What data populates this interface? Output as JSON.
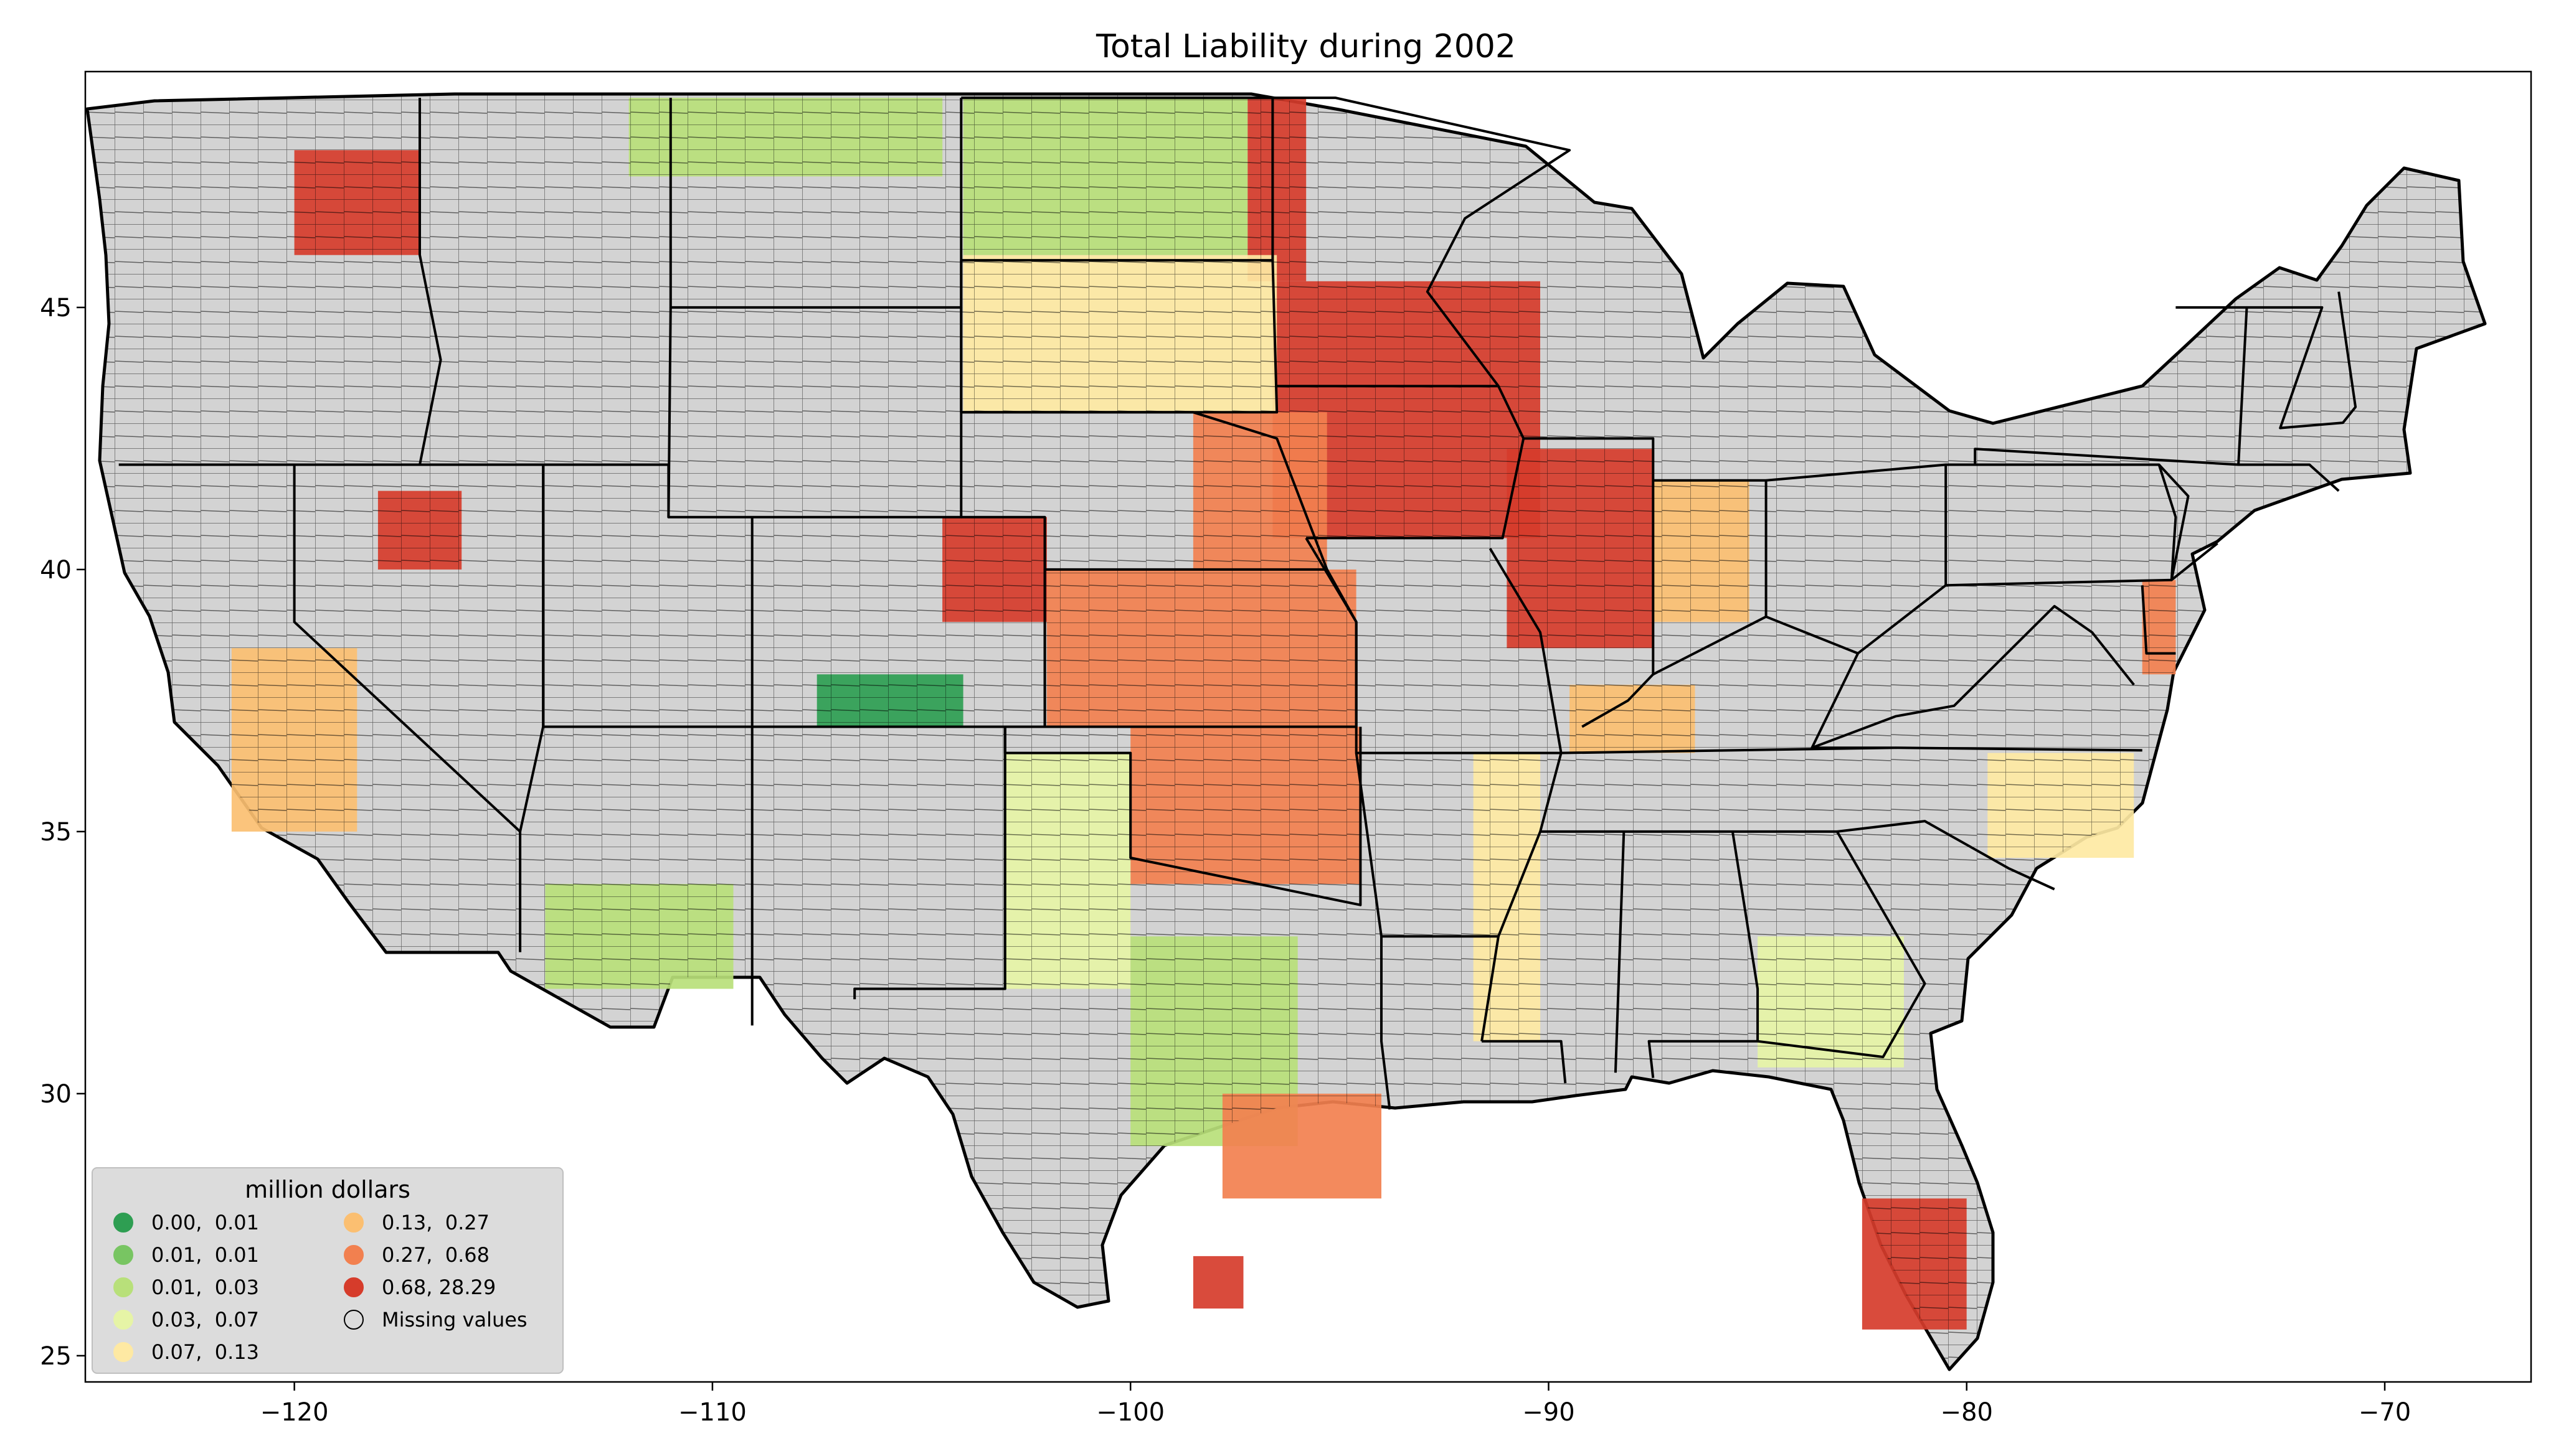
{
  "title": "Total Liability during 2002",
  "map": {
    "projection": "plate carree (longitude / latitude)",
    "lon_range": [
      -125,
      -66.5
    ],
    "lat_range": [
      24.5,
      49.5
    ],
    "background_color": "#d3d3d3",
    "county_border_color": "#000000",
    "region": "contiguous United States, county level"
  },
  "axes": {
    "x_ticks": [
      {
        "value": -120,
        "label": "−120"
      },
      {
        "value": -110,
        "label": "−110"
      },
      {
        "value": -100,
        "label": "−100"
      },
      {
        "value": -90,
        "label": "−90"
      },
      {
        "value": -80,
        "label": "−80"
      },
      {
        "value": -70,
        "label": "−70"
      }
    ],
    "y_ticks": [
      {
        "value": 25,
        "label": "25"
      },
      {
        "value": 30,
        "label": "30"
      },
      {
        "value": 35,
        "label": "35"
      },
      {
        "value": 40,
        "label": "40"
      },
      {
        "value": 45,
        "label": "45"
      }
    ]
  },
  "legend": {
    "title": "million dollars",
    "placement": "lower-left",
    "entries": [
      {
        "label": "0.00,  0.01",
        "color": "#2e9e52"
      },
      {
        "label": "0.01,  0.01",
        "color": "#78c562"
      },
      {
        "label": "0.01,  0.03",
        "color": "#b8e07a"
      },
      {
        "label": "0.03,  0.07",
        "color": "#e6f4a6"
      },
      {
        "label": "0.07,  0.13",
        "color": "#fee9a3"
      },
      {
        "label": "0.13,  0.27",
        "color": "#fbbf71"
      },
      {
        "label": "0.27,  0.68",
        "color": "#f2804f"
      },
      {
        "label": "0.68, 28.29",
        "color": "#d63c2b"
      },
      {
        "label": "Missing values",
        "color": "none"
      }
    ]
  },
  "chart_data": {
    "type": "choropleth",
    "title": "Total Liability during 2002",
    "value_unit": "million dollars",
    "xlim": [
      -125,
      -66.5
    ],
    "ylim": [
      24.5,
      49.5
    ],
    "classes": [
      {
        "range": [
          0.0,
          0.01
        ],
        "color": "#2e9e52"
      },
      {
        "range": [
          0.01,
          0.01
        ],
        "color": "#78c562"
      },
      {
        "range": [
          0.01,
          0.03
        ],
        "color": "#b8e07a"
      },
      {
        "range": [
          0.03,
          0.07
        ],
        "color": "#e6f4a6"
      },
      {
        "range": [
          0.07,
          0.13
        ],
        "color": "#fee9a3"
      },
      {
        "range": [
          0.13,
          0.27
        ],
        "color": "#fbbf71"
      },
      {
        "range": [
          0.27,
          0.68
        ],
        "color": "#f2804f"
      },
      {
        "range": [
          0.68,
          28.29
        ],
        "color": "#d63c2b"
      }
    ],
    "missing_color": "#d3d3d3",
    "regions": [
      {
        "name": "Iowa and southern Minnesota",
        "lon": [
          -96.6,
          -90.2
        ],
        "lat": [
          40.6,
          45.5
        ],
        "class": 7
      },
      {
        "name": "Red River Valley (MN/ND border)",
        "lon": [
          -97.2,
          -95.8
        ],
        "lat": [
          45.5,
          49.0
        ],
        "class": 7
      },
      {
        "name": "Eastern Nebraska",
        "lon": [
          -98.5,
          -95.3
        ],
        "lat": [
          40.0,
          43.0
        ],
        "class": 6
      },
      {
        "name": "Kansas",
        "lon": [
          -102.0,
          -94.6
        ],
        "lat": [
          37.0,
          40.0
        ],
        "class": 6
      },
      {
        "name": "Northeastern Colorado",
        "lon": [
          -104.5,
          -102.0
        ],
        "lat": [
          39.0,
          41.0
        ],
        "class": 7
      },
      {
        "name": "Central Illinois",
        "lon": [
          -91.0,
          -87.5
        ],
        "lat": [
          38.5,
          42.3
        ],
        "class": 7
      },
      {
        "name": "Indiana corn belt",
        "lon": [
          -87.5,
          -85.2
        ],
        "lat": [
          39.0,
          41.7
        ],
        "class": 5
      },
      {
        "name": "Oklahoma",
        "lon": [
          -100.0,
          -94.5
        ],
        "lat": [
          34.0,
          37.0
        ],
        "class": 6
      },
      {
        "name": "South Dakota",
        "lon": [
          -104.0,
          -96.5
        ],
        "lat": [
          43.0,
          46.0
        ],
        "class": 4
      },
      {
        "name": "North Dakota",
        "lon": [
          -104.0,
          -97.2
        ],
        "lat": [
          46.0,
          49.0
        ],
        "class": 2
      },
      {
        "name": "Texas Panhandle",
        "lon": [
          -103.0,
          -100.0
        ],
        "lat": [
          32.0,
          36.5
        ],
        "class": 3
      },
      {
        "name": "Central Texas",
        "lon": [
          -100.0,
          -96.0
        ],
        "lat": [
          29.0,
          33.0
        ],
        "class": 2
      },
      {
        "name": "Texas Gulf Coast",
        "lon": [
          -97.8,
          -94.0
        ],
        "lat": [
          28.0,
          30.0
        ],
        "class": 6
      },
      {
        "name": "Lower Rio Grande Valley",
        "lon": [
          -98.5,
          -97.3
        ],
        "lat": [
          25.9,
          26.9
        ],
        "class": 7
      },
      {
        "name": "Mississippi Delta",
        "lon": [
          -91.8,
          -90.2
        ],
        "lat": [
          31.0,
          36.5
        ],
        "class": 4
      },
      {
        "name": "North Carolina coastal plain",
        "lon": [
          -79.5,
          -76.0
        ],
        "lat": [
          34.5,
          36.5
        ],
        "class": 4
      },
      {
        "name": "Delmarva Peninsula",
        "lon": [
          -75.8,
          -75.0
        ],
        "lat": [
          38.0,
          39.8
        ],
        "class": 6
      },
      {
        "name": "Western Kentucky",
        "lon": [
          -89.5,
          -86.5
        ],
        "lat": [
          36.5,
          37.8
        ],
        "class": 5
      },
      {
        "name": "Southern Florida",
        "lon": [
          -82.5,
          -80.0
        ],
        "lat": [
          25.5,
          28.0
        ],
        "class": 7
      },
      {
        "name": "Eastern Washington",
        "lon": [
          -120.0,
          -117.0
        ],
        "lat": [
          46.0,
          48.0
        ],
        "class": 7
      },
      {
        "name": "Northern Montana",
        "lon": [
          -112.0,
          -104.5
        ],
        "lat": [
          47.5,
          49.0
        ],
        "class": 2
      },
      {
        "name": "Eastern Nevada",
        "lon": [
          -118.0,
          -116.0
        ],
        "lat": [
          40.0,
          41.5
        ],
        "class": 7
      },
      {
        "name": "Central California",
        "lon": [
          -121.5,
          -118.5
        ],
        "lat": [
          35.0,
          38.5
        ],
        "class": 5
      },
      {
        "name": "Southern Arizona",
        "lon": [
          -114.0,
          -109.5
        ],
        "lat": [
          32.0,
          34.0
        ],
        "class": 2
      },
      {
        "name": "Southeastern Colorado",
        "lon": [
          -107.5,
          -104.0
        ],
        "lat": [
          37.0,
          38.0
        ],
        "class": 0
      },
      {
        "name": "Southern Georgia",
        "lon": [
          -85.0,
          -81.5
        ],
        "lat": [
          30.5,
          33.0
        ],
        "class": 3
      },
      {
        "name": "Northeast (New England, New York)",
        "lon": [
          -80.0,
          -67.0
        ],
        "lat": [
          40.5,
          47.5
        ],
        "class": -1
      },
      {
        "name": "Mountain West",
        "lon": [
          -117.0,
          -104.0
        ],
        "lat": [
          32.0,
          47.0
        ],
        "class": -1
      }
    ]
  }
}
